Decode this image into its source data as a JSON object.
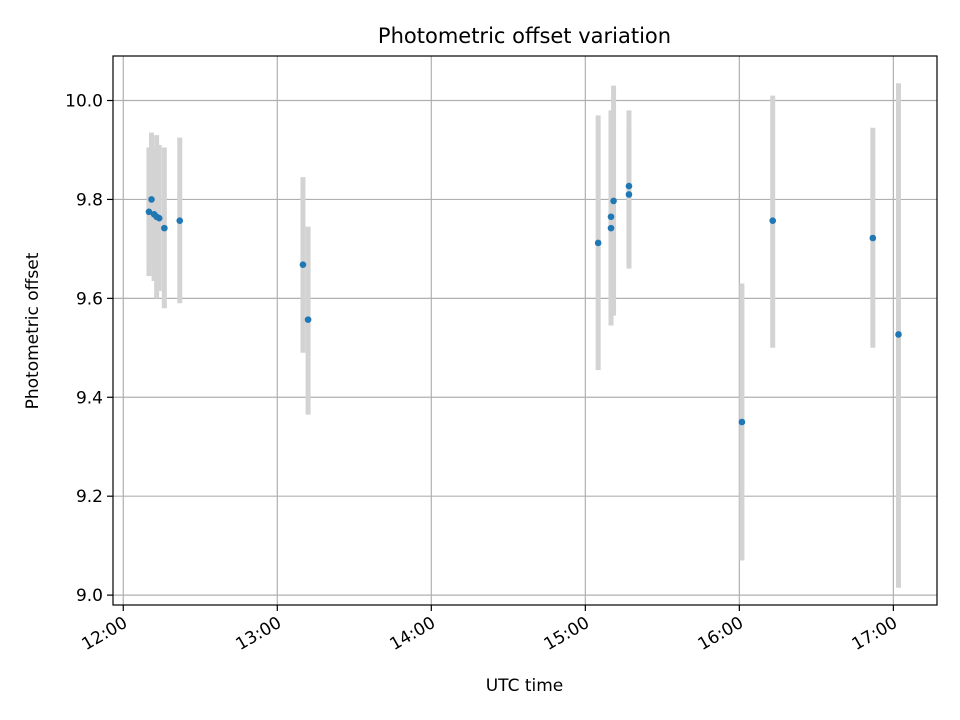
{
  "chart_data": {
    "type": "scatter",
    "title": "Photometric offset variation",
    "xlabel": "UTC time",
    "ylabel": "Photometric offset",
    "x_ticks": [
      "12:00",
      "13:00",
      "14:00",
      "15:00",
      "16:00",
      "17:00"
    ],
    "y_ticks": [
      "9.0",
      "9.2",
      "9.4",
      "9.6",
      "9.8",
      "10.0"
    ],
    "xlim": [
      "11:56",
      "17:17"
    ],
    "ylim": [
      8.98,
      10.09
    ],
    "grid": true,
    "colors": {
      "point": "#1f77b4",
      "errorbar": "#d3d3d3",
      "grid": "#b0b0b0"
    },
    "points": [
      {
        "x": "12:10",
        "y": 9.775,
        "err_low": 9.645,
        "err_high": 9.905
      },
      {
        "x": "12:11",
        "y": 9.8,
        "err_low": 9.665,
        "err_high": 9.935
      },
      {
        "x": "12:12",
        "y": 9.77,
        "err_low": 9.635,
        "err_high": 9.905
      },
      {
        "x": "12:13",
        "y": 9.765,
        "err_low": 9.6,
        "err_high": 9.93
      },
      {
        "x": "12:14",
        "y": 9.762,
        "err_low": 9.615,
        "err_high": 9.91
      },
      {
        "x": "12:16",
        "y": 9.742,
        "err_low": 9.58,
        "err_high": 9.905
      },
      {
        "x": "12:22",
        "y": 9.757,
        "err_low": 9.59,
        "err_high": 9.925
      },
      {
        "x": "13:10",
        "y": 9.668,
        "err_low": 9.49,
        "err_high": 9.845
      },
      {
        "x": "13:12",
        "y": 9.557,
        "err_low": 9.365,
        "err_high": 9.745
      },
      {
        "x": "15:05",
        "y": 9.712,
        "err_low": 9.455,
        "err_high": 9.97
      },
      {
        "x": "15:10",
        "y": 9.765,
        "err_low": 9.545,
        "err_high": 9.98
      },
      {
        "x": "15:10",
        "y": 9.742,
        "err_low": 9.56,
        "err_high": 9.925
      },
      {
        "x": "15:11",
        "y": 9.797,
        "err_low": 9.565,
        "err_high": 10.03
      },
      {
        "x": "15:17",
        "y": 9.81,
        "err_low": 9.67,
        "err_high": 9.95
      },
      {
        "x": "15:17",
        "y": 9.827,
        "err_low": 9.66,
        "err_high": 9.98
      },
      {
        "x": "16:01",
        "y": 9.35,
        "err_low": 9.07,
        "err_high": 9.63
      },
      {
        "x": "16:13",
        "y": 9.757,
        "err_low": 9.5,
        "err_high": 10.01
      },
      {
        "x": "16:52",
        "y": 9.722,
        "err_low": 9.5,
        "err_high": 9.945
      },
      {
        "x": "17:02",
        "y": 9.527,
        "err_low": 9.015,
        "err_high": 10.035
      }
    ]
  }
}
